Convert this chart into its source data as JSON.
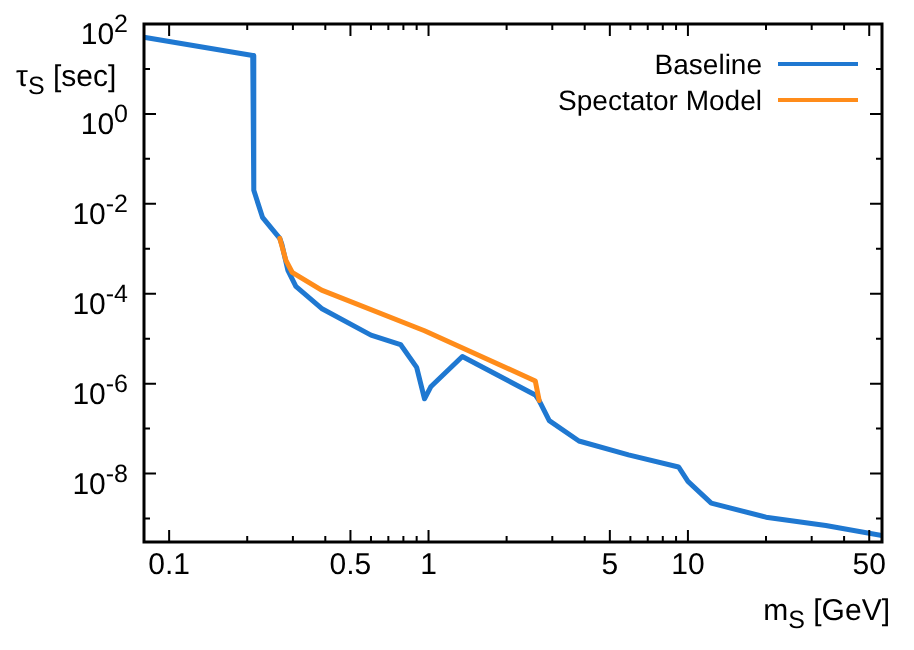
{
  "chart_data": {
    "type": "line",
    "xlabel": "m$_{S}$ [GeV]",
    "ylabel": "τ$_{S}$ [sec]",
    "log": "xy",
    "grid": false,
    "legend": "top right",
    "marker": "none",
    "line_style": "solid",
    "xlim": [
      0.08,
      56
    ],
    "xticks": [
      {
        "value": 0.1,
        "label": "0.1"
      },
      {
        "value": 0.2,
        "label": null
      },
      {
        "value": 0.3,
        "label": null
      },
      {
        "value": 0.4,
        "label": null
      },
      {
        "value": 0.5,
        "label": "0.5"
      },
      {
        "value": 0.6,
        "label": null
      },
      {
        "value": 0.7,
        "label": null
      },
      {
        "value": 0.8,
        "label": null
      },
      {
        "value": 0.9,
        "label": null
      },
      {
        "value": 1,
        "label": "1"
      },
      {
        "value": 2,
        "label": null
      },
      {
        "value": 3,
        "label": null
      },
      {
        "value": 4,
        "label": null
      },
      {
        "value": 5,
        "label": "5"
      },
      {
        "value": 6,
        "label": null
      },
      {
        "value": 7,
        "label": null
      },
      {
        "value": 8,
        "label": null
      },
      {
        "value": 9,
        "label": null
      },
      {
        "value": 10,
        "label": "10"
      },
      {
        "value": 20,
        "label": null
      },
      {
        "value": 30,
        "label": null
      },
      {
        "value": 40,
        "label": null
      },
      {
        "value": 50,
        "label": "50"
      }
    ],
    "ylim": [
      3e-10,
      100
    ],
    "yticks": [
      {
        "value": 1e-09,
        "label": null
      },
      {
        "value": 1e-08,
        "label": "10$^{-8}$"
      },
      {
        "value": 1e-07,
        "label": null
      },
      {
        "value": 1e-06,
        "label": "10$^{-6}$"
      },
      {
        "value": 1e-05,
        "label": null
      },
      {
        "value": 0.0001,
        "label": "10$^{-4}$"
      },
      {
        "value": 0.001,
        "label": null
      },
      {
        "value": 0.01,
        "label": "10$^{-2}$"
      },
      {
        "value": 0.1,
        "label": null
      },
      {
        "value": 1,
        "label": "10$^{0}$"
      },
      {
        "value": 10,
        "label": null
      },
      {
        "value": 100,
        "label": "10$^{2}$"
      }
    ],
    "series": [
      {
        "name": "Baseline",
        "color": "#1f78d1",
        "x": [
          0.081,
          0.21,
          0.212,
          0.229,
          0.267,
          0.272,
          0.287,
          0.308,
          0.387,
          0.6,
          0.78,
          0.9,
          0.965,
          1.02,
          1.35,
          2.58,
          2.67,
          2.92,
          3.8,
          5.9,
          9.2,
          10,
          12.3,
          20,
          34,
          56
        ],
        "values": [
          50,
          20,
          0.02,
          0.005,
          0.0017,
          0.00125,
          0.00033,
          0.000145,
          4.7e-05,
          1.2e-05,
          7.4e-06,
          2.3e-06,
          4.6e-07,
          8.5e-07,
          4e-06,
          5.6e-07,
          4.2e-07,
          1.5e-07,
          5.3e-08,
          2.6e-08,
          1.4e-08,
          6.7e-09,
          2.2e-09,
          1.07e-09,
          7e-10,
          4.2e-10
        ]
      },
      {
        "name": "Spectator Model",
        "color": "#ff8c1a",
        "x": [
          0.267,
          0.282,
          0.298,
          0.387,
          0.965,
          2.58,
          2.67
        ],
        "values": [
          0.0017,
          0.00055,
          0.0003,
          0.00012,
          1.5e-05,
          1.15e-06,
          4.2e-07
        ]
      }
    ]
  }
}
